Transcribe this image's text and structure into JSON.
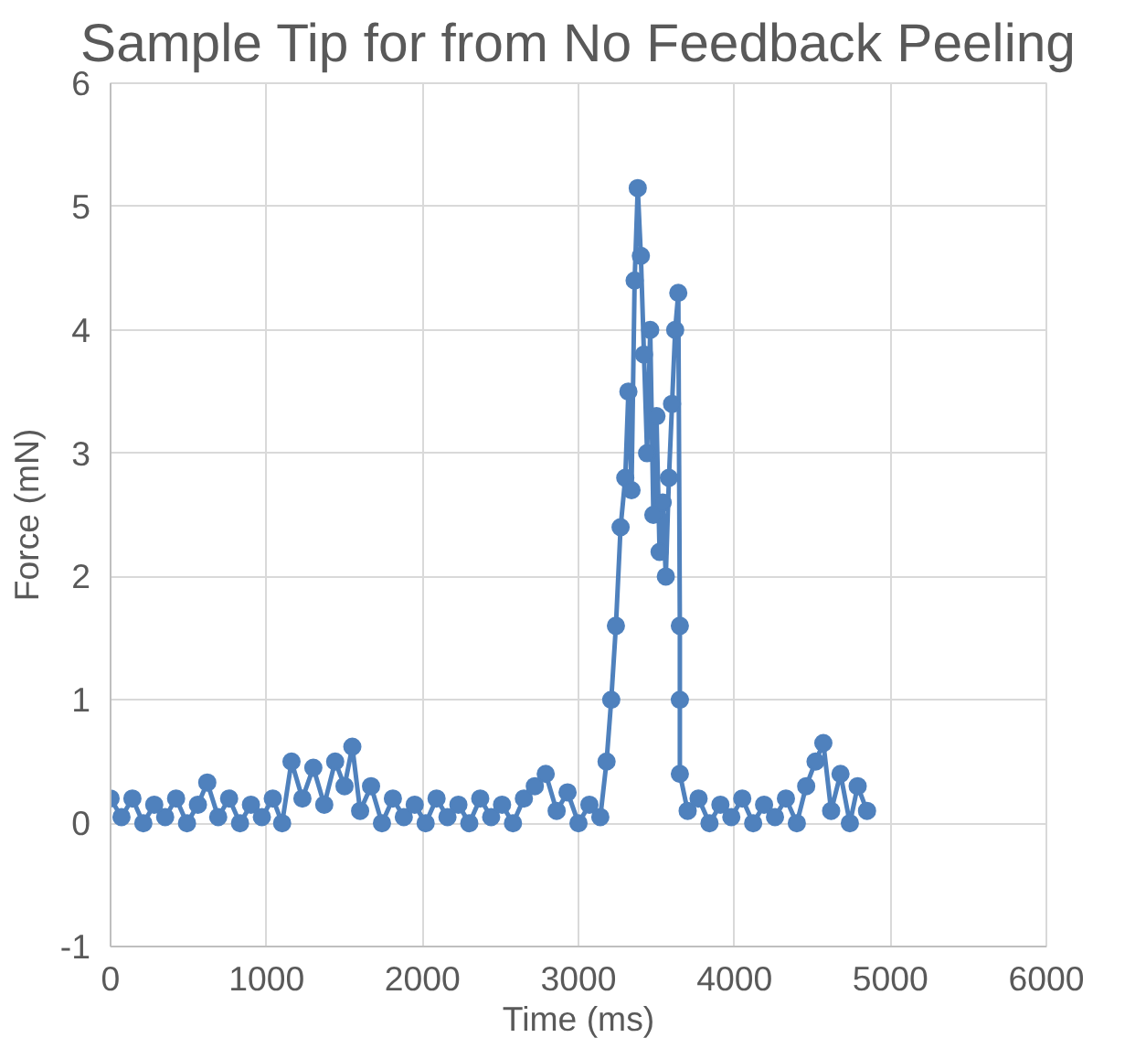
{
  "chart_data": {
    "type": "line",
    "title": "Sample Tip for from No Feedback Peeling",
    "xlabel": "Time (ms)",
    "ylabel": "Force (mN)",
    "x": [
      0,
      70,
      140,
      210,
      280,
      350,
      420,
      490,
      560,
      620,
      690,
      760,
      830,
      900,
      970,
      1040,
      1100,
      1160,
      1230,
      1300,
      1370,
      1440,
      1500,
      1550,
      1600,
      1670,
      1740,
      1810,
      1880,
      1950,
      2020,
      2090,
      2160,
      2230,
      2300,
      2370,
      2440,
      2510,
      2580,
      2650,
      2720,
      2790,
      2860,
      2930,
      3000,
      3070,
      3140,
      3180,
      3210,
      3240,
      3270,
      3300,
      3320,
      3340,
      3360,
      3380,
      3400,
      3420,
      3440,
      3460,
      3480,
      3500,
      3520,
      3540,
      3560,
      3580,
      3600,
      3620,
      3640,
      3650,
      3650,
      3650,
      3700,
      3770,
      3840,
      3910,
      3980,
      4050,
      4120,
      4190,
      4260,
      4330,
      4400,
      4460,
      4520,
      4570,
      4620,
      4680,
      4740,
      4790,
      4850
    ],
    "values": [
      0.2,
      0.05,
      0.2,
      0.0,
      0.15,
      0.05,
      0.2,
      0.0,
      0.15,
      0.33,
      0.05,
      0.2,
      0.0,
      0.15,
      0.05,
      0.2,
      0.0,
      0.5,
      0.2,
      0.45,
      0.15,
      0.5,
      0.3,
      0.62,
      0.1,
      0.3,
      0.0,
      0.2,
      0.05,
      0.15,
      0.0,
      0.2,
      0.05,
      0.15,
      0.0,
      0.2,
      0.05,
      0.15,
      0.0,
      0.2,
      0.3,
      0.4,
      0.1,
      0.25,
      0.0,
      0.15,
      0.05,
      0.5,
      1.0,
      1.6,
      2.4,
      2.8,
      3.5,
      2.7,
      4.4,
      5.15,
      4.6,
      3.8,
      3.0,
      4.0,
      2.5,
      3.3,
      2.2,
      2.6,
      2.0,
      2.8,
      3.4,
      4.0,
      4.3,
      1.6,
      1.0,
      0.4,
      0.1,
      0.2,
      0.0,
      0.15,
      0.05,
      0.2,
      0.0,
      0.15,
      0.05,
      0.2,
      0.0,
      0.3,
      0.5,
      0.65,
      0.1,
      0.4,
      0.0,
      0.3,
      0.1
    ],
    "color": "#4f81bd",
    "marker": "circle",
    "line_style": "solid",
    "xlim": [
      0,
      6000
    ],
    "xticks": [
      0,
      1000,
      2000,
      3000,
      4000,
      5000,
      6000
    ],
    "ylim": [
      -1,
      6
    ],
    "yticks": [
      -1,
      0,
      1,
      2,
      3,
      4,
      5,
      6
    ],
    "grid": true
  }
}
